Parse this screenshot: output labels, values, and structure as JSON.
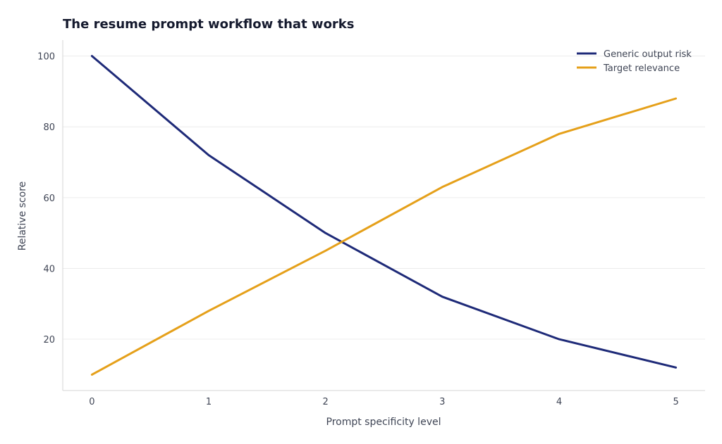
{
  "chart_data": {
    "type": "line",
    "title": "The resume prompt workflow that works",
    "xlabel": "Prompt specificity level",
    "ylabel": "Relative score",
    "x": [
      0,
      1,
      2,
      3,
      4,
      5
    ],
    "xlim": [
      -0.25,
      5.25
    ],
    "ylim": [
      5.5,
      104.5
    ],
    "xticks": [
      0,
      1,
      2,
      3,
      4,
      5
    ],
    "yticks": [
      20,
      40,
      60,
      80,
      100
    ],
    "grid": true,
    "legend_position": "top-right",
    "series": [
      {
        "name": "Generic output risk",
        "color": "#1e2a78",
        "values": [
          100,
          72,
          50,
          32,
          20,
          12
        ]
      },
      {
        "name": "Target relevance",
        "color": "#e5a01a",
        "values": [
          10,
          28,
          45,
          63,
          78,
          88
        ]
      }
    ]
  }
}
